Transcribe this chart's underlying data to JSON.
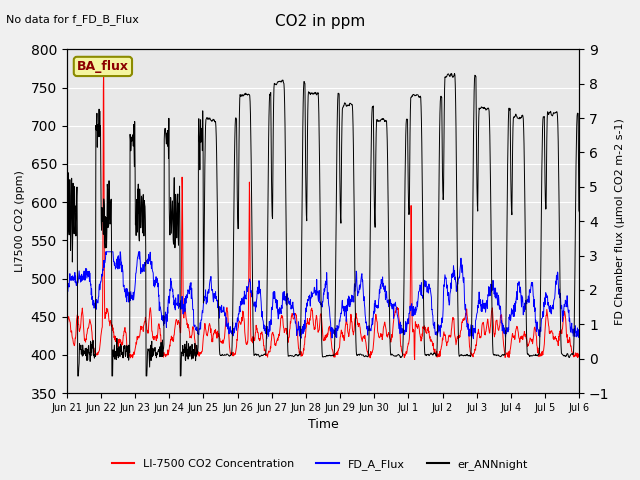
{
  "title": "CO2 in ppm",
  "top_left_text": "No data for f_FD_B_Flux",
  "annotation_box": "BA_flux",
  "xlabel": "Time",
  "ylabel_left": "LI7500 CO2 (ppm)",
  "ylabel_right": "FD Chamber flux (μmol CO2 m-2 s-1)",
  "ylim_left": [
    350,
    800
  ],
  "ylim_right": [
    -1.0,
    9.0
  ],
  "yticks_left": [
    350,
    400,
    450,
    500,
    550,
    600,
    650,
    700,
    750,
    800
  ],
  "yticks_right": [
    -1.0,
    0.0,
    1.0,
    2.0,
    3.0,
    4.0,
    5.0,
    6.0,
    7.0,
    8.0,
    9.0
  ],
  "xticklabels": [
    "Jun 21",
    "Jun 22",
    "Jun 23",
    "Jun 24",
    "Jun 25",
    "Jun 26",
    "Jun 27",
    "Jun 28",
    "Jun 29",
    "Jun 30",
    "Jul 1",
    "Jul 2",
    "Jul 3",
    "Jul 4",
    "Jul 5",
    "Jul 6"
  ],
  "legend_entries": [
    "LI-7500 CO2 Concentration",
    "FD_A_Flux",
    "er_ANNnight"
  ],
  "legend_colors": [
    "red",
    "blue",
    "black"
  ],
  "fig_facecolor": "#f0f0f0",
  "plot_facecolor": "#e8e8e8",
  "grid_color": "white",
  "figsize": [
    6.4,
    4.8
  ],
  "dpi": 100
}
